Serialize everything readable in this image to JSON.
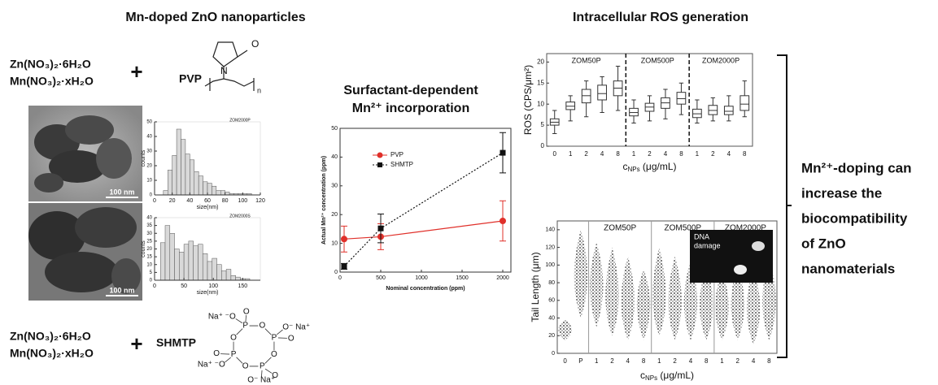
{
  "figure": {
    "left_title": "Mn-doped ZnO nanoparticles",
    "top_reagents": [
      "Zn(NO₃)₂·6H₂O",
      "Mn(NO₃)₂·xH₂O"
    ],
    "plus_top": "+",
    "top_surfactant": "PVP",
    "pvp_atoms": [
      "O",
      "N",
      "n"
    ],
    "scale_bars": [
      "100 nm",
      "100 nm"
    ],
    "bottom_reagents": [
      "Zn(NO₃)₂·6H₂O",
      "Mn(NO₃)₂·xH₂O"
    ],
    "plus_bottom": "+",
    "bottom_surfactant": "SHMTP",
    "shmtp_ring": [
      "P",
      "O",
      "P",
      "O",
      "P",
      "O",
      "P",
      "O"
    ],
    "shmtp_substituents": [
      "Na⁺ ⁻O",
      "O",
      "O⁻ Na⁺",
      "O",
      "O",
      "O⁻ Na⁺",
      "Na⁺ ⁻O",
      "O"
    ],
    "conclusion": [
      "Mn²⁺-doping can",
      "increase the",
      "biocompatibility",
      "of ZnO",
      "nanomaterials"
    ]
  },
  "chart_data": [
    {
      "type": "histogram",
      "title": "ZOM2000P",
      "xlabel": "size(nm)",
      "ylabel": "counts",
      "color": "#d9d9d9",
      "bins": [
        10,
        15,
        20,
        25,
        30,
        35,
        40,
        45,
        50,
        55,
        60,
        65,
        70,
        75,
        80,
        85,
        90,
        95,
        100,
        105,
        110
      ],
      "counts": [
        3,
        17,
        27,
        45,
        38,
        28,
        24,
        16,
        13,
        9,
        8,
        6,
        3,
        3,
        2,
        1,
        1,
        1,
        1,
        1
      ],
      "xlim": [
        0,
        120
      ],
      "xticks": [
        0,
        20,
        40,
        60,
        80,
        100,
        120
      ],
      "ylim": [
        0,
        50
      ],
      "yticks": [
        0,
        10,
        20,
        30,
        40,
        50
      ]
    },
    {
      "type": "histogram",
      "title": "ZOM2000S",
      "xlabel": "size(nm)",
      "ylabel": "counts",
      "color": "#d9d9d9",
      "bins": [
        10,
        18,
        26,
        34,
        42,
        50,
        58,
        66,
        74,
        82,
        90,
        98,
        106,
        114,
        122,
        130,
        138,
        146,
        154,
        162
      ],
      "counts": [
        24,
        35,
        30,
        20,
        18,
        23,
        25,
        22,
        23,
        17,
        12,
        14,
        10,
        6,
        7,
        3,
        2,
        1,
        1
      ],
      "xlim": [
        0,
        180
      ],
      "xticks": [
        0,
        50,
        100,
        150
      ],
      "ylim": [
        0,
        40
      ],
      "yticks": [
        0,
        5,
        10,
        15,
        20,
        25,
        30,
        35,
        40
      ]
    },
    {
      "type": "line",
      "title": [
        "Surfactant-dependent",
        "Mn²⁺ incorporation"
      ],
      "xlabel": "Nominal concentration (ppm)",
      "ylabel": "Actual Mn²⁺ concentration (ppm)",
      "x": [
        50,
        500,
        2000
      ],
      "series": [
        {
          "name": "PVP",
          "color": "#e0302a",
          "marker": "circle",
          "line_style": "solid",
          "values": [
            11.5,
            12.3,
            17.8
          ],
          "errors": [
            4.5,
            4.5,
            7
          ]
        },
        {
          "name": "SHMTP",
          "color": "#111111",
          "marker": "square",
          "line_style": "dotted",
          "values": [
            2,
            15.2,
            41.5
          ],
          "errors": [
            1,
            5,
            7
          ]
        }
      ],
      "xlim": [
        0,
        2100
      ],
      "xticks": [
        0,
        500,
        1000,
        1500,
        2000
      ],
      "ylim": [
        0,
        50
      ],
      "yticks": [
        0,
        10,
        20,
        30,
        40,
        50
      ],
      "legend": "upper left"
    },
    {
      "type": "box",
      "title": "Intracellular ROS generation",
      "ylabel": "ROS (CPS/μm²)",
      "xlabel": {
        "main": "c",
        "sub": "NPs",
        "rest": " (μg/mL)"
      },
      "groups": [
        {
          "name": "ZOM50P",
          "categories": [
            "0",
            "1",
            "2",
            "4",
            "8"
          ],
          "boxes": [
            {
              "min": 3,
              "q1": 5,
              "median": 5.7,
              "q3": 6.5,
              "max": 8.5
            },
            {
              "min": 6,
              "q1": 8.7,
              "median": 9.5,
              "q3": 10.5,
              "max": 12
            },
            {
              "min": 7,
              "q1": 10.3,
              "median": 12,
              "q3": 13.5,
              "max": 15.5
            },
            {
              "min": 8,
              "q1": 11,
              "median": 12.5,
              "q3": 14.5,
              "max": 16.5
            },
            {
              "min": 8.5,
              "q1": 12,
              "median": 13.8,
              "q3": 15.5,
              "max": 19
            }
          ]
        },
        {
          "name": "ZOM500P",
          "categories": [
            "1",
            "2",
            "4",
            "8"
          ],
          "boxes": [
            {
              "min": 5.5,
              "q1": 7.2,
              "median": 8,
              "q3": 9,
              "max": 11
            },
            {
              "min": 6,
              "q1": 8.3,
              "median": 9.3,
              "q3": 10.2,
              "max": 12
            },
            {
              "min": 6.5,
              "q1": 9,
              "median": 10.3,
              "q3": 11.5,
              "max": 13.5
            },
            {
              "min": 7.5,
              "q1": 10,
              "median": 11.3,
              "q3": 12.8,
              "max": 15
            }
          ]
        },
        {
          "name": "ZOM2000P",
          "categories": [
            "1",
            "2",
            "4",
            "8"
          ],
          "boxes": [
            {
              "min": 5.5,
              "q1": 6.8,
              "median": 7.7,
              "q3": 8.8,
              "max": 11
            },
            {
              "min": 6,
              "q1": 7.5,
              "median": 8.5,
              "q3": 9.7,
              "max": 11.5
            },
            {
              "min": 6,
              "q1": 7.5,
              "median": 8.3,
              "q3": 9.5,
              "max": 12
            },
            {
              "min": 7,
              "q1": 8.5,
              "median": 10,
              "q3": 12,
              "max": 15.5
            }
          ]
        }
      ],
      "ylim": [
        0,
        22
      ],
      "yticks": [
        0,
        5,
        10,
        15,
        20
      ]
    },
    {
      "type": "strip",
      "ylabel": "Tail Length (μm)",
      "xlabel": {
        "main": "c",
        "sub": "NPs",
        "rest": " (μg/mL)"
      },
      "inset_label": [
        "DNA",
        "damage"
      ],
      "controls": {
        "categories": [
          "0",
          "P"
        ],
        "ranges": [
          {
            "low": 15,
            "center": 27,
            "high": 38
          },
          {
            "low": 40,
            "center": 85,
            "high": 140
          }
        ]
      },
      "groups": [
        {
          "name": "ZOM50P",
          "categories": [
            "1",
            "2",
            "4",
            "8"
          ],
          "ranges": [
            {
              "low": 30,
              "center": 75,
              "high": 125
            },
            {
              "low": 20,
              "center": 60,
              "high": 120
            },
            {
              "low": 15,
              "center": 55,
              "high": 110
            },
            {
              "low": 15,
              "center": 55,
              "high": 95
            }
          ]
        },
        {
          "name": "ZOM500P",
          "categories": [
            "1",
            "2",
            "4",
            "8"
          ],
          "ranges": [
            {
              "low": 20,
              "center": 60,
              "high": 120
            },
            {
              "low": 15,
              "center": 55,
              "high": 110
            },
            {
              "low": 15,
              "center": 55,
              "high": 105
            },
            {
              "low": 15,
              "center": 52,
              "high": 100
            }
          ]
        },
        {
          "name": "ZOM2000P",
          "categories": [
            "1",
            "2",
            "4",
            "8"
          ],
          "ranges": [
            {
              "low": 15,
              "center": 50,
              "high": 95
            },
            {
              "low": 15,
              "center": 52,
              "high": 100
            },
            {
              "low": 10,
              "center": 50,
              "high": 95
            },
            {
              "low": 15,
              "center": 55,
              "high": 110
            }
          ]
        }
      ],
      "ylim": [
        0,
        150
      ],
      "yticks": [
        0,
        20,
        40,
        60,
        80,
        100,
        120,
        140
      ]
    }
  ]
}
